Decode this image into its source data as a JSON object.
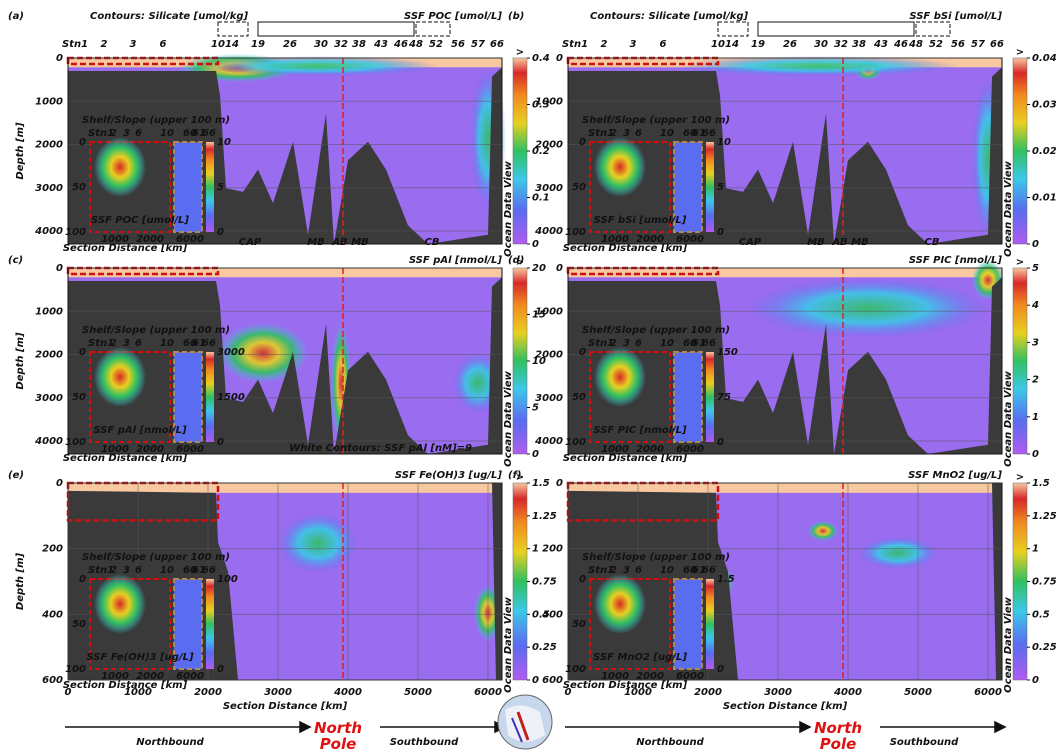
{
  "chart_data": [
    {
      "type": "contour",
      "panel": "(a)",
      "title": "SSF POC [umol/L]",
      "contour_label": "Contours: Silicate [umol/kg]",
      "y_label": "Depth [m]",
      "stations": [
        "Stn1",
        "2",
        "3",
        "6",
        "10",
        "14",
        "19",
        "26",
        "30",
        "32",
        "38",
        "43",
        "46",
        "48",
        "52",
        "56",
        "57",
        "66"
      ],
      "regions": [
        "CAP",
        "MB",
        "AB",
        "MB",
        "CB"
      ],
      "ylim": [
        0,
        4300
      ],
      "yticks": [
        0,
        1000,
        2000,
        3000,
        4000
      ],
      "clim": [
        0,
        0.4
      ],
      "cticks": [
        0,
        0.1,
        0.2,
        0.3,
        0.4
      ],
      "c_over": ">",
      "c_label": "Ocean Data View",
      "inset": {
        "title": "Shelf/Slope (upper 100 m)",
        "stations": [
          "Stn1",
          "2",
          "3",
          "6",
          "10",
          "60",
          "61",
          "66"
        ],
        "yticks": [
          0,
          50,
          100
        ],
        "xticks": [
          1000,
          2000,
          6000
        ],
        "x_label": "Section Distance [km]",
        "cticks": [
          0,
          5,
          10
        ],
        "name": "SSF POC [umol/L]"
      }
    },
    {
      "type": "contour",
      "panel": "(b)",
      "title": "SSF bSi [umol/L]",
      "contour_label": "Contours: Silicate [umol/kg]",
      "stations": [
        "Stn1",
        "2",
        "3",
        "6",
        "10",
        "14",
        "19",
        "26",
        "30",
        "32",
        "38",
        "43",
        "46",
        "48",
        "52",
        "56",
        "57",
        "66"
      ],
      "regions": [
        "CAP",
        "MB",
        "AB",
        "MB",
        "CB"
      ],
      "ylim": [
        0,
        4300
      ],
      "yticks": [
        0,
        1000,
        2000,
        3000,
        4000
      ],
      "clim": [
        0,
        0.04
      ],
      "cticks": [
        0,
        0.01,
        0.02,
        0.03,
        0.04
      ],
      "c_over": ">",
      "c_label": "Ocean Data View",
      "inset": {
        "title": "Shelf/Slope (upper 100 m)",
        "stations": [
          "Stn1",
          "2",
          "3",
          "6",
          "10",
          "60",
          "61",
          "66"
        ],
        "yticks": [
          0,
          50,
          100
        ],
        "xticks": [
          1000,
          2000,
          6000
        ],
        "x_label": "Section Distance [km]",
        "cticks": [
          0,
          5,
          10
        ],
        "name": "SSF bSi [umol/L]"
      }
    },
    {
      "type": "contour",
      "panel": "(c)",
      "title": "SSF pAl [nmol/L]",
      "y_label": "Depth [m]",
      "note": "White Contours: SSF pAl [nM]=9",
      "ylim": [
        0,
        4300
      ],
      "yticks": [
        0,
        1000,
        2000,
        3000,
        4000
      ],
      "clim": [
        0,
        20
      ],
      "cticks": [
        0,
        5,
        10,
        15,
        20
      ],
      "c_over": ">",
      "c_label": "Ocean Data View",
      "inset": {
        "title": "Shelf/Slope (upper 100 m)",
        "stations": [
          "Stn1",
          "2",
          "3",
          "6",
          "10",
          "60",
          "61",
          "66"
        ],
        "yticks": [
          0,
          50,
          100
        ],
        "xticks": [
          1000,
          2000,
          6000
        ],
        "x_label": "Section Distance [km]",
        "cticks": [
          0,
          1500,
          3000
        ],
        "name": "SSF pAl [nmol/L]"
      }
    },
    {
      "type": "contour",
      "panel": "(d)",
      "title": "SSF PIC [nmol/L]",
      "ylim": [
        0,
        4300
      ],
      "yticks": [
        0,
        1000,
        2000,
        3000,
        4000
      ],
      "clim": [
        0,
        5
      ],
      "cticks": [
        0,
        1,
        2,
        3,
        4,
        5
      ],
      "c_over": ">",
      "c_label": "Ocean Data View",
      "inset": {
        "title": "Shelf/Slope (upper 100 m)",
        "stations": [
          "Stn1",
          "2",
          "3",
          "6",
          "10",
          "60",
          "61",
          "66"
        ],
        "yticks": [
          0,
          50,
          100
        ],
        "xticks": [
          1000,
          2000,
          6000
        ],
        "x_label": "Section Distance [km]",
        "cticks": [
          0,
          75,
          150
        ],
        "name": "SSF PIC [nmol/L]"
      }
    },
    {
      "type": "contour",
      "panel": "(e)",
      "title": "SSF Fe(OH)3 [ug/L]",
      "y_label": "Depth [m]",
      "x_label": "Section Distance [km]",
      "xlim": [
        0,
        6200
      ],
      "xticks": [
        0,
        1000,
        2000,
        3000,
        4000,
        5000,
        6000
      ],
      "ylim": [
        0,
        600
      ],
      "yticks": [
        0,
        200,
        400,
        600
      ],
      "clim": [
        0,
        1.5
      ],
      "cticks": [
        0,
        0.25,
        0.5,
        0.75,
        1,
        1.25,
        1.5
      ],
      "c_over": ">",
      "c_label": "Ocean Data View",
      "inset": {
        "title": "Shelf/Slope (upper 100 m)",
        "stations": [
          "Stn1",
          "2",
          "3",
          "6",
          "10",
          "60",
          "61",
          "66"
        ],
        "yticks": [
          0,
          50,
          100
        ],
        "xticks": [
          1000,
          2000,
          6000
        ],
        "x_label": "Section Distance [km]",
        "cticks": [
          0,
          100
        ],
        "name": "SSF Fe(OH)3 [ug/L]"
      }
    },
    {
      "type": "contour",
      "panel": "(f)",
      "title": "SSF MnO2 [ug/L]",
      "x_label": "Section Distance [km]",
      "xlim": [
        0,
        6200
      ],
      "xticks": [
        0,
        1000,
        2000,
        3000,
        4000,
        5000,
        6000
      ],
      "ylim": [
        0,
        600
      ],
      "yticks": [
        0,
        200,
        400,
        600
      ],
      "clim": [
        0,
        1.5
      ],
      "cticks": [
        0,
        0.25,
        0.5,
        0.75,
        1,
        1.25,
        1.5
      ],
      "c_over": ">",
      "c_label": "Ocean Data View",
      "inset": {
        "title": "Shelf/Slope (upper 100 m)",
        "stations": [
          "Stn1",
          "2",
          "3",
          "6",
          "10",
          "60",
          "61",
          "66"
        ],
        "yticks": [
          0,
          50,
          100
        ],
        "xticks": [
          1000,
          2000,
          6000
        ],
        "x_label": "Section Distance [km]",
        "cticks": [
          0,
          1.5
        ],
        "name": "SSF MnO2 [ug/L]"
      }
    }
  ],
  "footer": [
    {
      "northbound": "Northbound",
      "pole": "North Pole",
      "southbound": "Southbound"
    },
    {
      "northbound": "Northbound",
      "pole": "North Pole",
      "southbound": "Southbound"
    }
  ]
}
